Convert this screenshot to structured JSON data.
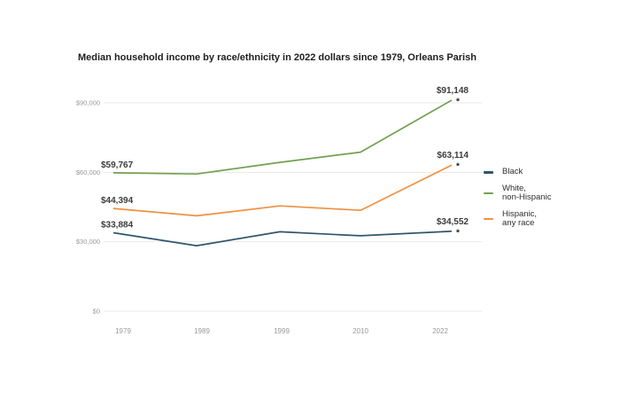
{
  "title": "Median household income by race/ethnicity in 2022 dollars since 1979, Orleans Parish",
  "chart_data": {
    "type": "line",
    "title": "Median household income by race/ethnicity in 2022 dollars since 1979, Orleans Parish",
    "categories": [
      "1979",
      "1989",
      "1999",
      "2010",
      "2022"
    ],
    "y_axis": {
      "ticks": [
        {
          "label": "$90,000",
          "value": 90000
        },
        {
          "label": "$60,000",
          "value": 60000
        },
        {
          "label": "$30,000",
          "value": 30000
        },
        {
          "label": "$0",
          "value": 0
        }
      ],
      "range": [
        0,
        94000
      ],
      "grid": true
    },
    "series": [
      {
        "name": "Black",
        "color": "#30566c",
        "values": [
          33884,
          28300,
          34300,
          32600,
          34552
        ],
        "first_label": "$33,884",
        "last_label": "$34,552",
        "last_marker": "*"
      },
      {
        "name": "White, non-Hispanic",
        "color": "#71a150",
        "values": [
          59767,
          59300,
          64300,
          68700,
          91148
        ],
        "first_label": "$59,767",
        "last_label": "$91,148",
        "last_marker": "*"
      },
      {
        "name": "Hispanic, any race",
        "color": "#ee9142",
        "values": [
          44394,
          41200,
          45500,
          43600,
          63114
        ],
        "first_label": "$44,394",
        "last_label": "$63,114",
        "last_marker": "*"
      }
    ],
    "legend_position": "right"
  },
  "legend": {
    "items": [
      {
        "label": "Black"
      },
      {
        "label": "White,\nnon-Hispanic"
      },
      {
        "label": "Hispanic,\nany race"
      }
    ]
  },
  "colors": {
    "background": "#ffffff",
    "grid": "#e8e8e8",
    "tick_text": "#999999",
    "value_label": "#3b3b3b",
    "marker": "#1a1a1a",
    "title": "#1e1e1e",
    "legend_text": "#2d2d2d"
  }
}
